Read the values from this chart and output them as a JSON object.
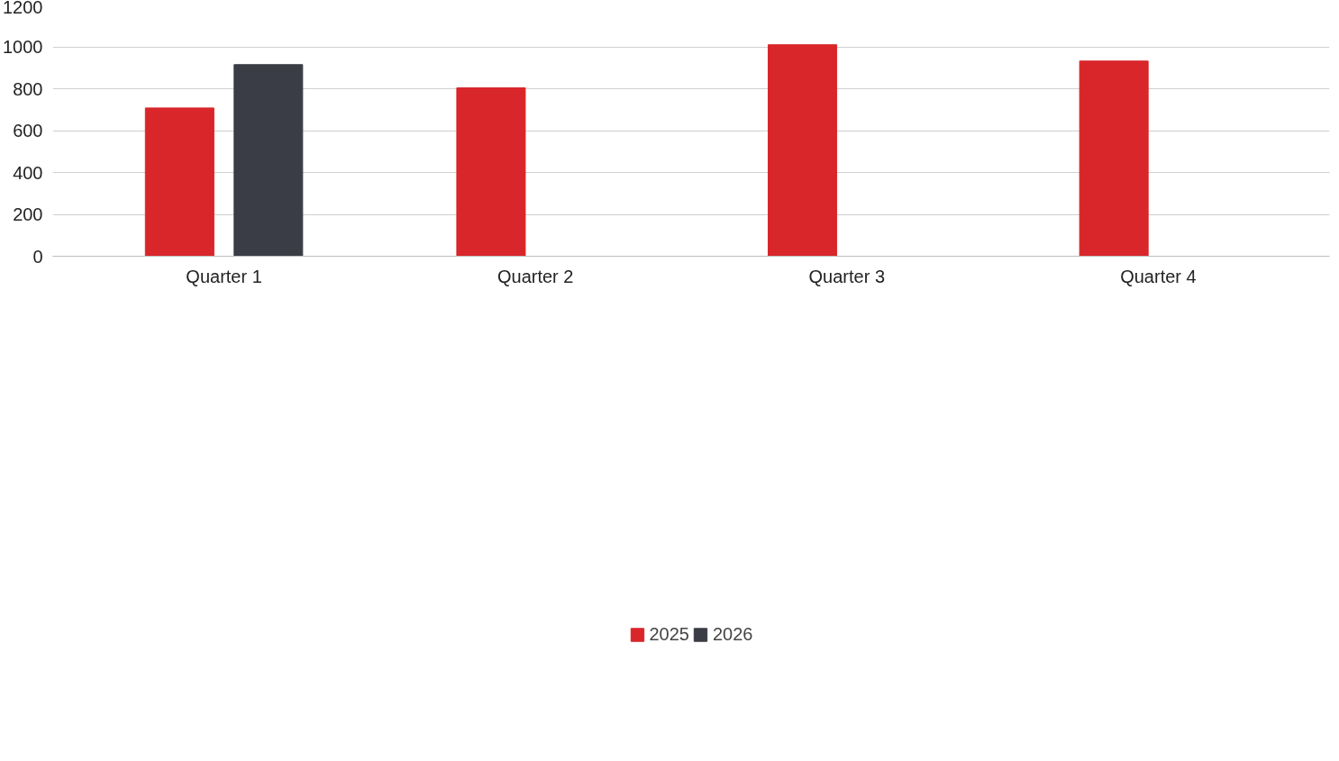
{
  "chart_data": {
    "type": "bar",
    "categories": [
      "Quarter 1",
      "Quarter 2",
      "Quarter 3",
      "Quarter 4"
    ],
    "series": [
      {
        "name": "2025",
        "color": "#d9262a",
        "values": [
          708,
          804,
          1010,
          932
        ]
      },
      {
        "name": "2026",
        "color": "#3a3d45",
        "values": [
          915,
          0,
          0,
          0
        ]
      }
    ],
    "ylim": [
      0,
      1200
    ],
    "yticks": [
      0,
      200,
      400,
      600,
      800,
      1000,
      1200
    ],
    "grid": "y",
    "legend": "bottom"
  }
}
